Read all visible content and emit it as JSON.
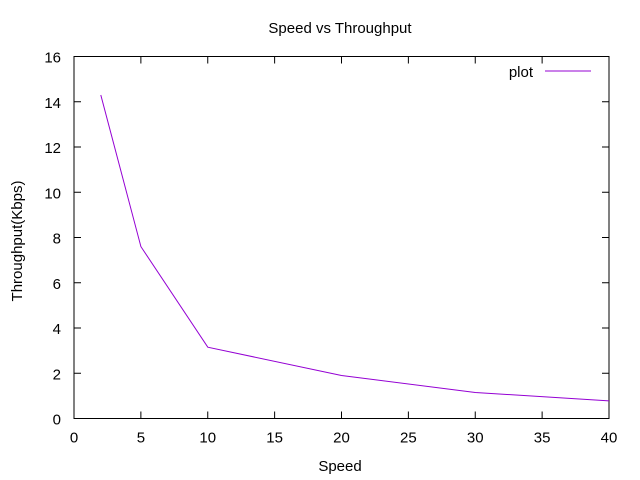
{
  "chart_data": {
    "type": "line",
    "title": "Speed vs Throughput",
    "xlabel": "Speed",
    "ylabel": "Throughput(Kbps)",
    "xlim": [
      0,
      40
    ],
    "ylim": [
      0,
      16
    ],
    "x_ticks": [
      0,
      5,
      10,
      15,
      20,
      25,
      30,
      35,
      40
    ],
    "y_ticks": [
      0,
      2,
      4,
      6,
      8,
      10,
      12,
      14,
      16
    ],
    "grid": false,
    "legend_position": "top-right",
    "series": [
      {
        "name": "plot",
        "color": "#9400d3",
        "x": [
          2,
          5,
          10,
          20,
          30,
          40
        ],
        "y": [
          14.3,
          7.6,
          3.15,
          1.9,
          1.15,
          0.78
        ]
      }
    ]
  }
}
